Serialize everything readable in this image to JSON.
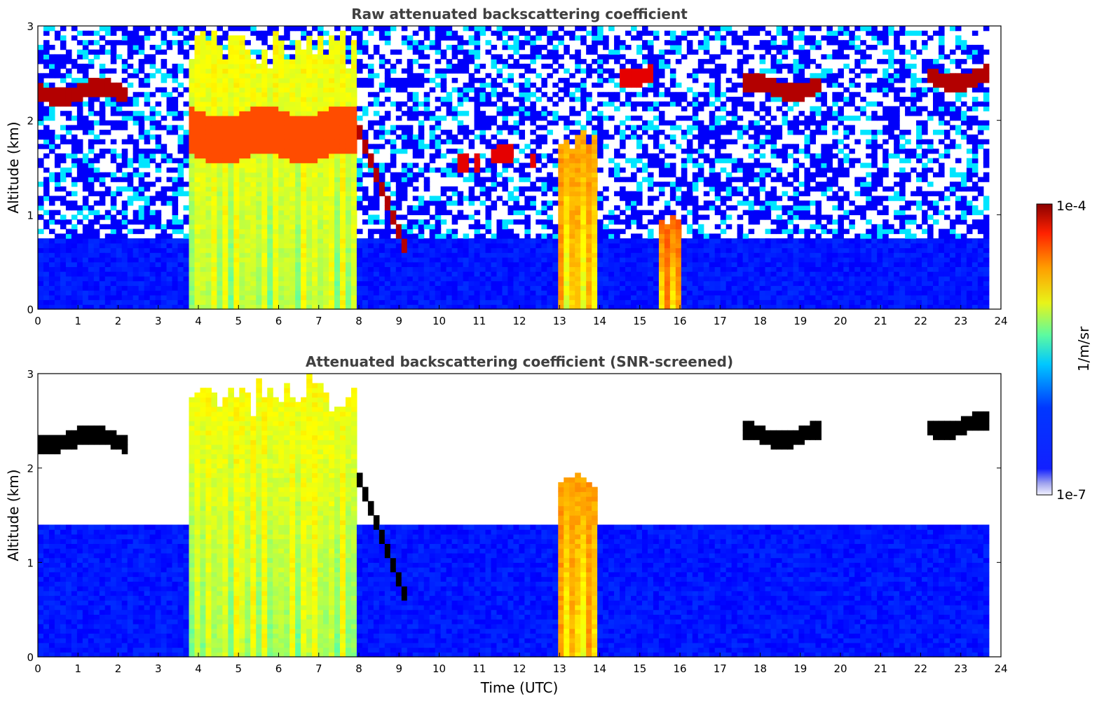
{
  "chart_data": [
    {
      "type": "heatmap",
      "title": "Raw attenuated backscattering coefficient",
      "xlabel": "",
      "ylabel": "Altitude (km)",
      "xlim": [
        0,
        24
      ],
      "ylim": [
        0,
        3
      ],
      "x_ticks": [
        "0",
        "1",
        "2",
        "3",
        "4",
        "5",
        "6",
        "7",
        "8",
        "9",
        "10",
        "11",
        "12",
        "13",
        "14",
        "15",
        "16",
        "17",
        "18",
        "19",
        "20",
        "21",
        "22",
        "23",
        "24"
      ],
      "y_ticks": [
        "0",
        "1",
        "2",
        "3"
      ],
      "data_end_time_utc": 23.7,
      "features": [
        {
          "kind": "elevated_layer",
          "t_start": 0.0,
          "t_end": 2.3,
          "alt_km": 2.3,
          "level": 0.95
        },
        {
          "kind": "dense_column",
          "t_start": 3.8,
          "t_end": 8.0,
          "top_km": 3.0,
          "level": 0.6
        },
        {
          "kind": "cloud_base_band",
          "t_start": 3.8,
          "t_end": 8.0,
          "alt_km": 1.85,
          "level": 0.8
        },
        {
          "kind": "descending_layer",
          "t_start": 8.0,
          "t_end": 9.2,
          "alt_from_km": 1.9,
          "alt_to_km": 0.6,
          "level": 0.95
        },
        {
          "kind": "broken_layer",
          "t_start": 10.5,
          "t_end": 12.5,
          "alt_km": 1.6,
          "level": 0.9
        },
        {
          "kind": "dense_column",
          "t_start": 12.9,
          "t_end": 14.0,
          "top_km": 2.0,
          "level": 0.7
        },
        {
          "kind": "elevated_layer",
          "t_start": 14.5,
          "t_end": 15.4,
          "alt_km": 2.5,
          "level": 0.9
        },
        {
          "kind": "dense_column",
          "t_start": 15.5,
          "t_end": 16.0,
          "top_km": 1.0,
          "level": 0.75
        },
        {
          "kind": "elevated_layer",
          "t_start": 17.5,
          "t_end": 19.5,
          "alt_km": 2.35,
          "level": 0.95
        },
        {
          "kind": "elevated_layer",
          "t_start": 22.2,
          "t_end": 23.7,
          "alt_km": 2.45,
          "level": 0.95
        },
        {
          "kind": "boundary_layer",
          "t_start": 0.0,
          "t_end": 23.7,
          "top_km": 0.75,
          "level": 0.12
        }
      ]
    },
    {
      "type": "heatmap",
      "title": "Attenuated backscattering coefficient (SNR-screened)",
      "xlabel": "Time (UTC)",
      "ylabel": "Altitude (km)",
      "xlim": [
        0,
        24
      ],
      "ylim": [
        0,
        3
      ],
      "x_ticks": [
        "0",
        "1",
        "2",
        "3",
        "4",
        "5",
        "6",
        "7",
        "8",
        "9",
        "10",
        "11",
        "12",
        "13",
        "14",
        "15",
        "16",
        "17",
        "18",
        "19",
        "20",
        "21",
        "22",
        "23",
        "24"
      ],
      "y_ticks": [
        "0",
        "1",
        "2",
        "3"
      ],
      "data_end_time_utc": 23.7,
      "note_visual": "low-signal regions masked to white; saturated cores drawn black",
      "features": [
        {
          "kind": "elevated_layer",
          "t_start": 0.0,
          "t_end": 2.3,
          "alt_km": 2.3,
          "level": 1.0
        },
        {
          "kind": "dense_column",
          "t_start": 3.8,
          "t_end": 8.0,
          "top_km": 3.0,
          "level": 0.6
        },
        {
          "kind": "descending_layer",
          "t_start": 8.0,
          "t_end": 9.2,
          "alt_from_km": 1.9,
          "alt_to_km": 0.6,
          "level": 1.0
        },
        {
          "kind": "dense_column",
          "t_start": 12.9,
          "t_end": 14.0,
          "top_km": 2.0,
          "level": 0.7
        },
        {
          "kind": "elevated_layer",
          "t_start": 17.5,
          "t_end": 19.5,
          "alt_km": 2.35,
          "level": 1.0
        },
        {
          "kind": "elevated_layer",
          "t_start": 22.2,
          "t_end": 23.7,
          "alt_km": 2.45,
          "level": 1.0
        },
        {
          "kind": "boundary_layer",
          "t_start": 0.0,
          "t_end": 23.7,
          "top_km": 1.4,
          "level": 0.12
        }
      ]
    }
  ],
  "colorbar": {
    "min_label": "1e-7",
    "max_label": "1e-4",
    "unit_label": "1/m/sr",
    "colormap": "jet"
  }
}
